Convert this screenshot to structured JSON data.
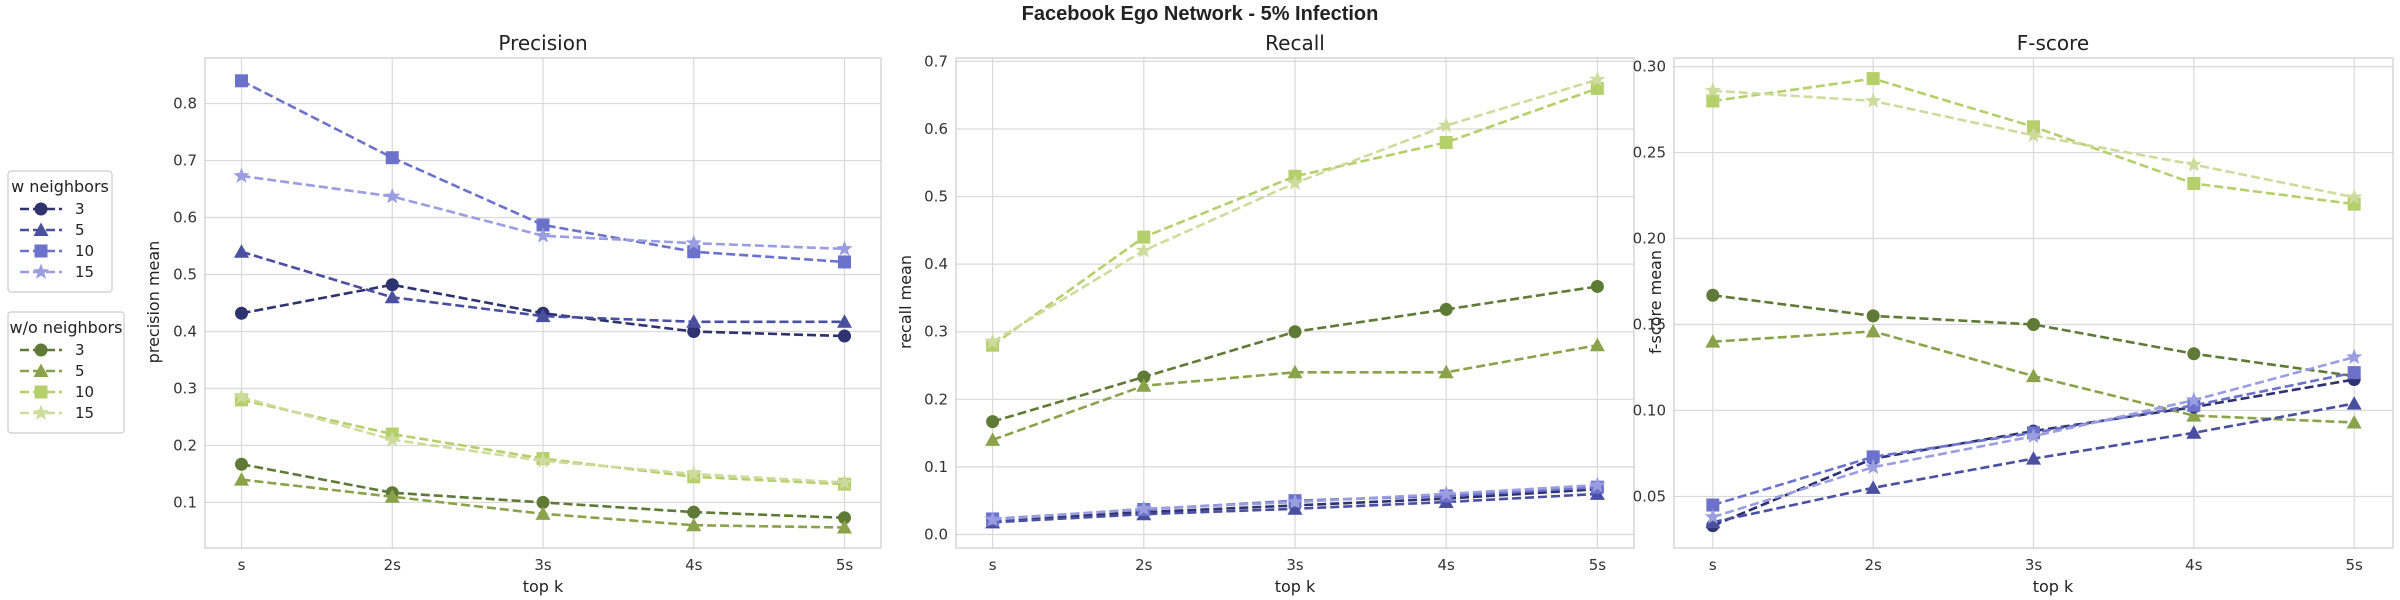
{
  "figure": {
    "suptitle": "Facebook Ego Network - 5% Infection"
  },
  "legends": [
    {
      "title": "w neighbors",
      "group": "with",
      "entries": [
        "3",
        "5",
        "10",
        "15"
      ]
    },
    {
      "title": "w/o neighbors",
      "group": "without",
      "entries": [
        "3",
        "5",
        "10",
        "15"
      ]
    }
  ],
  "colors": {
    "with": [
      "#2e326f",
      "#4a4fa0",
      "#6c72cc",
      "#9a9ee0"
    ],
    "without": [
      "#5f7a36",
      "#8aa24a",
      "#b5cf6b",
      "#cedb9c"
    ]
  },
  "markers": [
    "circle",
    "triangle",
    "square",
    "star"
  ],
  "chart_data": [
    {
      "type": "line",
      "title": "Precision",
      "xlabel": "top k",
      "ylabel": "precision mean",
      "categories": [
        "s",
        "2s",
        "3s",
        "4s",
        "5s"
      ],
      "ylim": [
        0.02,
        0.88
      ],
      "yticks": [
        "0.1",
        "0.2",
        "0.3",
        "0.4",
        "0.5",
        "0.6",
        "0.7",
        "0.8"
      ],
      "grid": true,
      "series": [
        {
          "name": "3",
          "group": "with",
          "values": [
            0.432,
            0.482,
            0.432,
            0.4,
            0.392
          ]
        },
        {
          "name": "5",
          "group": "with",
          "values": [
            0.54,
            0.46,
            0.427,
            0.417,
            0.417
          ]
        },
        {
          "name": "10",
          "group": "with",
          "values": [
            0.84,
            0.705,
            0.587,
            0.54,
            0.522
          ]
        },
        {
          "name": "15",
          "group": "with",
          "values": [
            0.673,
            0.637,
            0.568,
            0.555,
            0.545
          ]
        },
        {
          "name": "3",
          "group": "without",
          "values": [
            0.167,
            0.117,
            0.1,
            0.083,
            0.073
          ]
        },
        {
          "name": "5",
          "group": "without",
          "values": [
            0.14,
            0.11,
            0.08,
            0.06,
            0.056
          ]
        },
        {
          "name": "10",
          "group": "without",
          "values": [
            0.28,
            0.22,
            0.177,
            0.145,
            0.132
          ]
        },
        {
          "name": "15",
          "group": "without",
          "values": [
            0.285,
            0.21,
            0.173,
            0.15,
            0.135
          ]
        }
      ]
    },
    {
      "type": "line",
      "title": "Recall",
      "xlabel": "top k",
      "ylabel": "recall mean",
      "categories": [
        "s",
        "2s",
        "3s",
        "4s",
        "5s"
      ],
      "ylim": [
        -0.02,
        0.705
      ],
      "yticks": [
        "0.0",
        "0.1",
        "0.2",
        "0.3",
        "0.4",
        "0.5",
        "0.6",
        "0.7"
      ],
      "grid": true,
      "series": [
        {
          "name": "3",
          "group": "with",
          "values": [
            0.02,
            0.033,
            0.043,
            0.053,
            0.067
          ]
        },
        {
          "name": "5",
          "group": "with",
          "values": [
            0.018,
            0.03,
            0.038,
            0.048,
            0.06
          ]
        },
        {
          "name": "10",
          "group": "with",
          "values": [
            0.023,
            0.037,
            0.05,
            0.057,
            0.07
          ]
        },
        {
          "name": "15",
          "group": "with",
          "values": [
            0.022,
            0.038,
            0.048,
            0.06,
            0.073
          ]
        },
        {
          "name": "3",
          "group": "without",
          "values": [
            0.167,
            0.233,
            0.3,
            0.333,
            0.367
          ]
        },
        {
          "name": "5",
          "group": "without",
          "values": [
            0.14,
            0.22,
            0.24,
            0.24,
            0.28
          ]
        },
        {
          "name": "10",
          "group": "without",
          "values": [
            0.28,
            0.44,
            0.53,
            0.58,
            0.66
          ]
        },
        {
          "name": "15",
          "group": "without",
          "values": [
            0.285,
            0.42,
            0.52,
            0.605,
            0.673
          ]
        }
      ]
    },
    {
      "type": "line",
      "title": "F-score",
      "xlabel": "top k",
      "ylabel": "f-score mean",
      "categories": [
        "s",
        "2s",
        "3s",
        "4s",
        "5s"
      ],
      "ylim": [
        0.02,
        0.305
      ],
      "yticks": [
        "0.05",
        "0.10",
        "0.15",
        "0.20",
        "0.25",
        "0.30"
      ],
      "grid": true,
      "series": [
        {
          "name": "3",
          "group": "with",
          "values": [
            0.033,
            0.072,
            0.088,
            0.102,
            0.118
          ]
        },
        {
          "name": "5",
          "group": "with",
          "values": [
            0.035,
            0.055,
            0.072,
            0.087,
            0.104
          ]
        },
        {
          "name": "10",
          "group": "with",
          "values": [
            0.045,
            0.073,
            0.087,
            0.103,
            0.122
          ]
        },
        {
          "name": "15",
          "group": "with",
          "values": [
            0.038,
            0.067,
            0.085,
            0.106,
            0.131
          ]
        },
        {
          "name": "3",
          "group": "without",
          "values": [
            0.167,
            0.155,
            0.15,
            0.133,
            0.12
          ]
        },
        {
          "name": "5",
          "group": "without",
          "values": [
            0.14,
            0.146,
            0.12,
            0.097,
            0.093
          ]
        },
        {
          "name": "10",
          "group": "without",
          "values": [
            0.28,
            0.293,
            0.265,
            0.232,
            0.22
          ]
        },
        {
          "name": "15",
          "group": "without",
          "values": [
            0.286,
            0.28,
            0.26,
            0.243,
            0.224
          ]
        }
      ]
    }
  ]
}
